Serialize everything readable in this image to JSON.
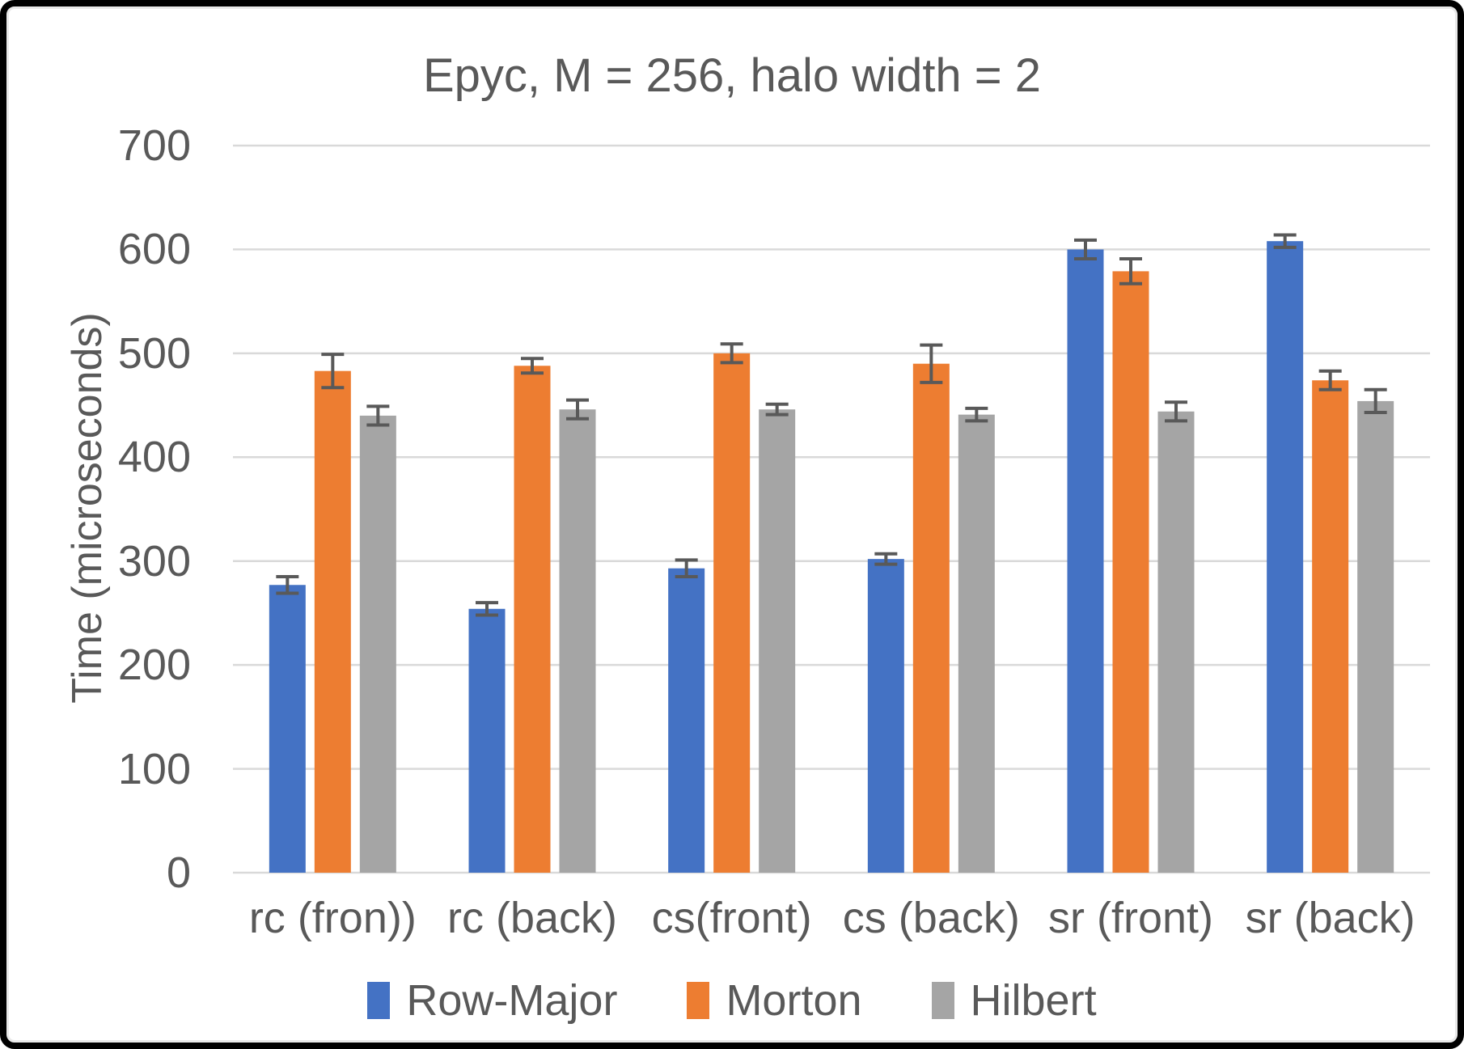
{
  "style": {
    "background_color": "#FFFFFF",
    "border_color": "#000000",
    "text_color": "#595959",
    "gridline_color": "#D9D9D9",
    "error_bar_color": "#595959"
  },
  "chart_data": {
    "type": "bar",
    "title": "Epyc, M = 256, halo width = 2",
    "xlabel": "",
    "ylabel": "Time (microseconds)",
    "ylim": [
      0,
      700
    ],
    "yticks": [
      0,
      100,
      200,
      300,
      400,
      500,
      600,
      700
    ],
    "grid": true,
    "error_bars": true,
    "legend_position": "bottom",
    "categories": [
      "rc (fron))",
      "rc (back)",
      "cs(front)",
      "cs (back)",
      "sr (front)",
      "sr (back)"
    ],
    "series": [
      {
        "name": "Row-Major",
        "color": "#4472C4",
        "values": [
          277,
          254,
          293,
          302,
          600,
          608
        ],
        "errors": [
          8,
          6,
          8,
          5,
          9,
          6
        ]
      },
      {
        "name": "Morton",
        "color": "#ED7D31",
        "values": [
          483,
          488,
          500,
          490,
          579,
          474
        ],
        "errors": [
          16,
          7,
          9,
          18,
          12,
          9
        ]
      },
      {
        "name": "Hilbert",
        "color": "#A5A5A5",
        "values": [
          440,
          446,
          446,
          441,
          444,
          454
        ],
        "errors": [
          9,
          9,
          5,
          6,
          9,
          11
        ]
      }
    ]
  }
}
